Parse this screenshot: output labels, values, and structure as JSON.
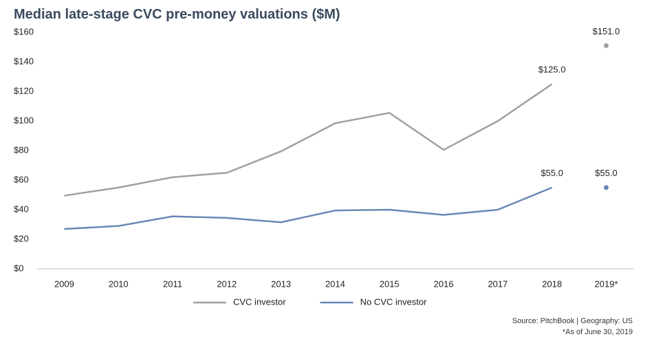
{
  "chart_data": {
    "type": "line",
    "title": "Median late-stage CVC pre-money valuations ($M)",
    "categories": [
      "2009",
      "2010",
      "2011",
      "2012",
      "2013",
      "2014",
      "2015",
      "2016",
      "2017",
      "2018",
      "2019*"
    ],
    "series": [
      {
        "name": "CVC investor",
        "color": "#a0a0a0",
        "values": [
          49.5,
          55,
          62,
          65,
          79.5,
          98.5,
          105.5,
          80.5,
          100,
          125,
          151
        ],
        "value_labels": [
          null,
          null,
          null,
          null,
          null,
          null,
          null,
          null,
          null,
          "$125.0",
          "$151.0"
        ]
      },
      {
        "name": "No CVC investor",
        "color": "#6a88b4",
        "values": [
          27,
          29,
          35.5,
          34.5,
          31.5,
          39.5,
          40,
          36.5,
          40,
          55,
          55
        ],
        "value_labels": [
          null,
          null,
          null,
          null,
          null,
          null,
          null,
          null,
          null,
          "$55.0",
          "$55.0"
        ]
      }
    ],
    "detached_last_point": true,
    "ylim": [
      0,
      160
    ],
    "yticks": [
      {
        "value": 0,
        "label": "$0"
      },
      {
        "value": 20,
        "label": "$20"
      },
      {
        "value": 40,
        "label": "$40"
      },
      {
        "value": 60,
        "label": "$60"
      },
      {
        "value": 80,
        "label": "$80"
      },
      {
        "value": 100,
        "label": "$100"
      },
      {
        "value": 120,
        "label": "$120"
      },
      {
        "value": 140,
        "label": "$140"
      },
      {
        "value": 160,
        "label": "$160"
      }
    ],
    "grid": false,
    "legend": "bottom",
    "source": "Source: PitchBook | Geography: US",
    "note": "*As of June 30, 2019"
  }
}
